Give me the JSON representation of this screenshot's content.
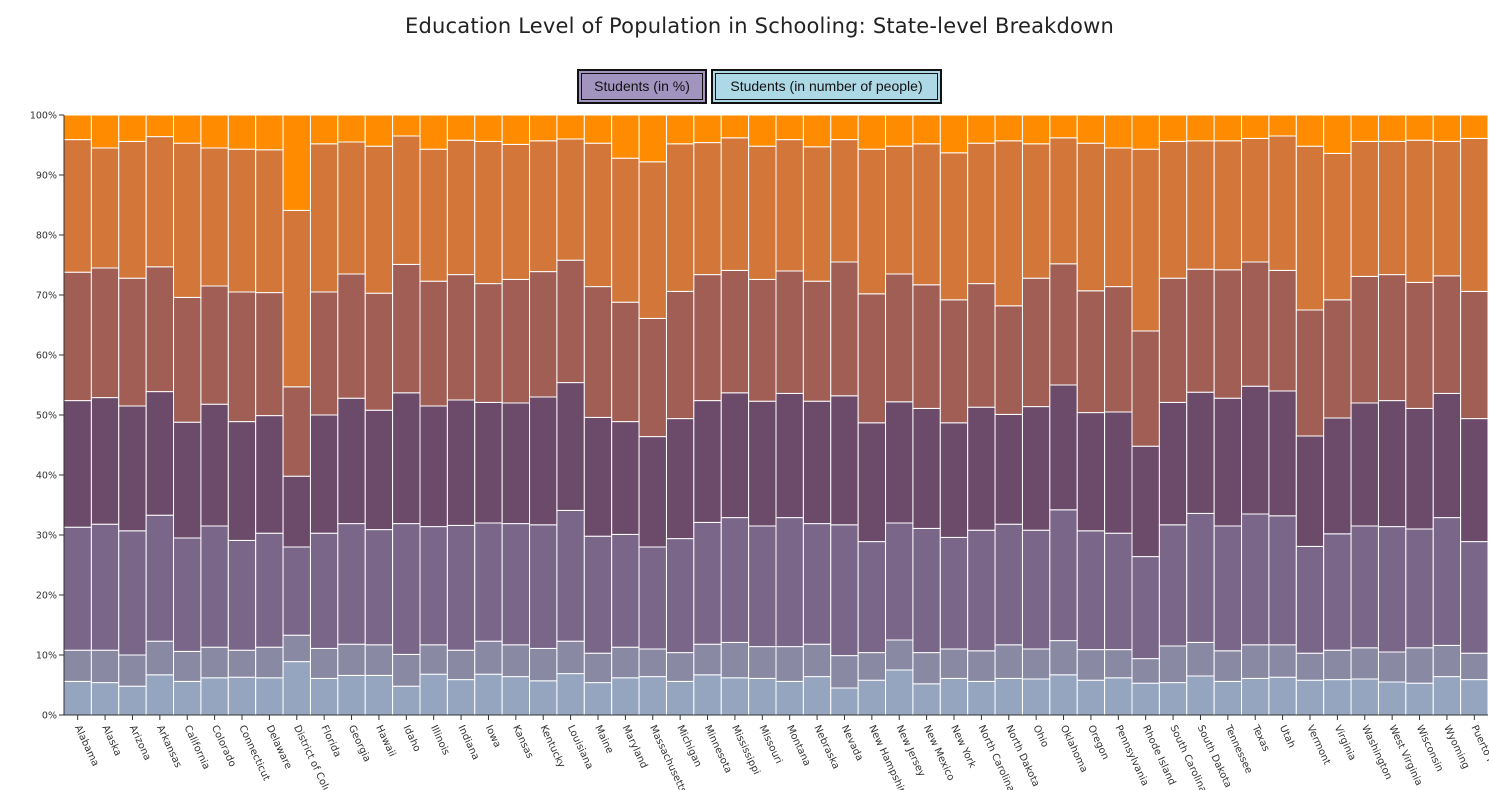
{
  "title": "Education Level of Population in Schooling: State-level Breakdown",
  "buttons": {
    "percent": "Students (in %)",
    "number": "Students (in number of people)"
  },
  "colors": {
    "segments": [
      "#96a5bf",
      "#8a89a4",
      "#7a6688",
      "#6b4a6a",
      "#a05e55",
      "#d2763a",
      "#ff8c00"
    ],
    "percent_button": "#a195c0",
    "number_button": "#add8e6"
  },
  "chart_data": {
    "type": "bar",
    "stacked": true,
    "normalized": true,
    "ylim": [
      0,
      100
    ],
    "yticks": [
      "0%",
      "10%",
      "20%",
      "30%",
      "40%",
      "50%",
      "60%",
      "70%",
      "80%",
      "90%",
      "100%"
    ],
    "grid": false,
    "legend": "none",
    "categories": [
      "Alabama",
      "Alaska",
      "Arizona",
      "Arkansas",
      "California",
      "Colorado",
      "Connecticut",
      "Delaware",
      "District of Colum",
      "Florida",
      "Georgia",
      "Hawaii",
      "Idaho",
      "Illinois",
      "Indiana",
      "Iowa",
      "Kansas",
      "Kentucky",
      "Louisiana",
      "Maine",
      "Maryland",
      "Massachusetts",
      "Michigan",
      "Minnesota",
      "Mississippi",
      "Missouri",
      "Montana",
      "Nebraska",
      "Nevada",
      "New Hampshire",
      "New Jersey",
      "New Mexico",
      "New York",
      "North Carolina",
      "North Dakota",
      "Ohio",
      "Oklahoma",
      "Oregon",
      "Pennsylvania",
      "Rhode Island",
      "South Carolina",
      "South Dakota",
      "Tennessee",
      "Texas",
      "Utah",
      "Vermont",
      "Virginia",
      "Washington",
      "West Virginia",
      "Wisconsin",
      "Wyoming",
      "Puerto Rico"
    ],
    "cumulative_boundaries_percent": [
      [
        5.6,
        10.8,
        31.3,
        52.4,
        73.8,
        95.9
      ],
      [
        5.4,
        10.8,
        31.8,
        52.9,
        74.5,
        94.5
      ],
      [
        4.8,
        10.0,
        30.7,
        51.5,
        72.8,
        95.6
      ],
      [
        6.7,
        12.3,
        33.3,
        53.9,
        74.7,
        96.4
      ],
      [
        5.6,
        10.6,
        29.5,
        48.8,
        69.6,
        95.3
      ],
      [
        6.2,
        11.3,
        31.5,
        51.8,
        71.5,
        94.5
      ],
      [
        6.3,
        10.8,
        29.1,
        48.9,
        70.5,
        94.3
      ],
      [
        6.2,
        11.3,
        30.3,
        49.9,
        70.4,
        94.2
      ],
      [
        8.9,
        13.3,
        28.0,
        39.8,
        54.7,
        84.1
      ],
      [
        6.1,
        11.1,
        30.3,
        50.0,
        70.5,
        95.2
      ],
      [
        6.6,
        11.8,
        31.9,
        52.8,
        73.5,
        95.5
      ],
      [
        6.6,
        11.7,
        30.9,
        50.8,
        70.3,
        94.8
      ],
      [
        4.8,
        10.1,
        31.9,
        53.7,
        75.1,
        96.5
      ],
      [
        6.8,
        11.7,
        31.4,
        51.5,
        72.3,
        94.3
      ],
      [
        5.9,
        10.8,
        31.6,
        52.5,
        73.4,
        95.8
      ],
      [
        6.8,
        12.3,
        32.0,
        52.1,
        71.9,
        95.6
      ],
      [
        6.4,
        11.7,
        31.9,
        52.0,
        72.6,
        95.1
      ],
      [
        5.7,
        11.1,
        31.7,
        53.0,
        73.9,
        95.7
      ],
      [
        6.9,
        12.3,
        34.1,
        55.4,
        75.8,
        96.0
      ],
      [
        5.4,
        10.3,
        29.8,
        49.6,
        71.4,
        95.3
      ],
      [
        6.2,
        11.3,
        30.1,
        48.9,
        68.8,
        92.8
      ],
      [
        6.4,
        11.0,
        28.0,
        46.4,
        66.1,
        92.2
      ],
      [
        5.6,
        10.4,
        29.4,
        49.4,
        70.6,
        95.2
      ],
      [
        6.7,
        11.8,
        32.1,
        52.4,
        73.4,
        95.4
      ],
      [
        6.2,
        12.1,
        32.9,
        53.7,
        74.1,
        96.2
      ],
      [
        6.1,
        11.4,
        31.5,
        52.3,
        72.6,
        94.8
      ],
      [
        5.6,
        11.4,
        32.9,
        53.6,
        74.0,
        95.9
      ],
      [
        6.4,
        11.8,
        31.9,
        52.3,
        72.3,
        94.7
      ],
      [
        4.5,
        9.9,
        31.7,
        53.2,
        75.5,
        95.9
      ],
      [
        5.8,
        10.4,
        28.9,
        48.7,
        70.2,
        94.3
      ],
      [
        7.5,
        12.5,
        32.0,
        52.2,
        73.5,
        94.8
      ],
      [
        5.2,
        10.4,
        31.1,
        51.1,
        71.7,
        95.2
      ],
      [
        6.1,
        11.0,
        29.6,
        48.7,
        69.2,
        93.7
      ],
      [
        5.6,
        10.7,
        30.8,
        51.3,
        71.9,
        95.3
      ],
      [
        6.1,
        11.7,
        31.8,
        50.1,
        68.2,
        95.7
      ],
      [
        6.0,
        11.0,
        30.8,
        51.4,
        72.8,
        95.2
      ],
      [
        6.7,
        12.4,
        34.2,
        55.0,
        75.2,
        96.2
      ],
      [
        5.8,
        10.9,
        30.7,
        50.4,
        70.7,
        95.3
      ],
      [
        6.2,
        10.9,
        30.3,
        50.5,
        71.4,
        94.5
      ],
      [
        5.3,
        9.4,
        26.4,
        44.8,
        64.0,
        94.3
      ],
      [
        5.4,
        11.5,
        31.7,
        52.1,
        72.8,
        95.6
      ],
      [
        6.5,
        12.1,
        33.6,
        53.8,
        74.3,
        95.7
      ],
      [
        5.6,
        10.7,
        31.5,
        52.8,
        74.2,
        95.7
      ],
      [
        6.1,
        11.7,
        33.5,
        54.8,
        75.5,
        96.1
      ],
      [
        6.3,
        11.7,
        33.2,
        54.0,
        74.1,
        96.5
      ],
      [
        5.8,
        10.3,
        28.1,
        46.5,
        67.5,
        94.8
      ],
      [
        5.9,
        10.8,
        30.2,
        49.5,
        69.2,
        93.6
      ],
      [
        6.0,
        11.2,
        31.5,
        52.0,
        73.1,
        95.6
      ],
      [
        5.5,
        10.5,
        31.4,
        52.4,
        73.4,
        95.6
      ],
      [
        5.3,
        11.2,
        31.0,
        51.1,
        72.1,
        95.8
      ],
      [
        6.4,
        11.6,
        32.9,
        53.6,
        73.2,
        95.6
      ],
      [
        5.9,
        10.3,
        28.9,
        49.4,
        70.6,
        96.1
      ]
    ]
  }
}
